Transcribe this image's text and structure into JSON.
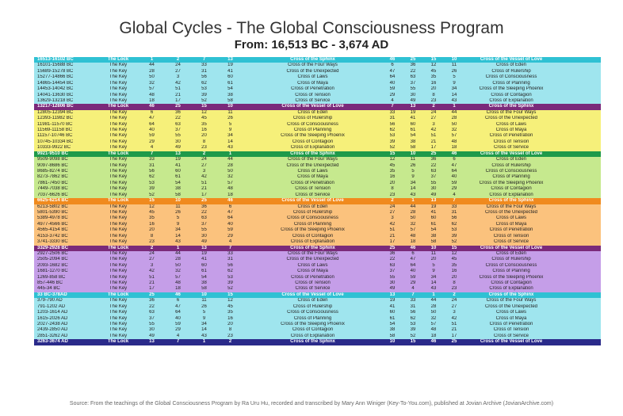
{
  "title": "Global Cycles - The Global Consciousness Program",
  "subtitle": "From: 16,513 BC - 3,674 AD",
  "source": "Source: From the teachings of the Global Consciousness Program by Ra Uru Hu, recorded and transcribed by Mary Ann Winiger (Key-To-You.com), published at Jovian Archive (JovianArchive.com)",
  "colors": {
    "hdr_teal": "#2fc1d3",
    "row_cyan": "#9fe5ee",
    "hdr_violet": "#7a2a7a",
    "row_yellow": "#f6f07a",
    "hdr_green": "#1f9a4a",
    "row_green": "#c6e98e",
    "hdr_orange": "#f08a1e",
    "row_orange": "#fbc27d",
    "hdr_purple": "#7a2a7a",
    "row_purple": "#c59ee8",
    "hdr_navy": "#2a2a8a"
  },
  "blocks": [
    {
      "header": [
        "16513-16102 BC",
        "The Lock",
        "1",
        "2",
        "7",
        "13",
        "Cross of the Sphinx",
        "46",
        "25",
        "15",
        "10",
        "Cross of the Vessel of Love"
      ],
      "hcolor": "hdr_teal",
      "rcolor": "row_cyan",
      "rows": [
        [
          "16101-15688 BC",
          "The Key",
          "44",
          "24",
          "33",
          "19",
          "Cross of the Four Ways",
          "6",
          "36",
          "12",
          "11",
          "Cross of Eden"
        ],
        [
          "15689-15278 BC",
          "The Key",
          "28",
          "27",
          "31",
          "41",
          "Cross of the Unexpected",
          "47",
          "22",
          "45",
          "26",
          "Cross of Rulership"
        ],
        [
          "15277-14866 BC",
          "The Key",
          "50",
          "3",
          "56",
          "60",
          "Cross of Laws",
          "64",
          "63",
          "35",
          "5",
          "Cross of Consciousness"
        ],
        [
          "14865-14454 BC",
          "The Key",
          "32",
          "42",
          "62",
          "61",
          "Cross of Maya",
          "40",
          "37",
          "16",
          "9",
          "Cross of Planning"
        ],
        [
          "14453-14042 BC",
          "The Key",
          "57",
          "51",
          "53",
          "54",
          "Cross of Penetration",
          "59",
          "55",
          "20",
          "34",
          "Cross of the Sleeping Phoenix"
        ],
        [
          "14041-13630 BC",
          "The Key",
          "48",
          "21",
          "39",
          "38",
          "Cross of Tension",
          "29",
          "30",
          "8",
          "14",
          "Cross of Contagion"
        ],
        [
          "13629-13218 BC",
          "The Key",
          "18",
          "17",
          "52",
          "58",
          "Cross of Service",
          "4",
          "49",
          "23",
          "43",
          "Cross of Explanation"
        ]
      ]
    },
    {
      "header": [
        "13217-12806 BC",
        "The Lock",
        "46",
        "25",
        "15",
        "10",
        "Cross of the Vessel of Love",
        "7",
        "13",
        "2",
        "1",
        "Cross of the Sphinx"
      ],
      "hcolor": "hdr_violet",
      "rcolor": "row_yellow",
      "rows": [
        [
          "12805-12394 BC",
          "The Key",
          "6",
          "36",
          "12",
          "11",
          "Cross of Eden",
          "33",
          "19",
          "24",
          "44",
          "Cross of the Four Ways"
        ],
        [
          "12393-11982 BC",
          "The Key",
          "47",
          "22",
          "45",
          "26",
          "Cross of Rulership",
          "31",
          "41",
          "27",
          "28",
          "Cross of the Unexpected"
        ],
        [
          "11981-11570 BC",
          "The Key",
          "64",
          "63",
          "35",
          "5",
          "Cross of Consciousness",
          "56",
          "60",
          "3",
          "50",
          "Cross of Laws"
        ],
        [
          "11569-11158 BC",
          "The Key",
          "40",
          "37",
          "16",
          "9",
          "Cross of Planning",
          "62",
          "61",
          "42",
          "32",
          "Cross of Maya"
        ],
        [
          "11157-10746 BC",
          "The Key",
          "59",
          "55",
          "20",
          "34",
          "Cross of the Sleeping Phoenix",
          "53",
          "54",
          "51",
          "57",
          "Cross of Penetration"
        ],
        [
          "10745-10334 BC",
          "The Key",
          "29",
          "30",
          "8",
          "14",
          "Cross of Contagion",
          "39",
          "38",
          "21",
          "48",
          "Cross of Tension"
        ],
        [
          "10333-9922 BC",
          "The Key",
          "4",
          "49",
          "23",
          "43",
          "Cross of Explanation",
          "52",
          "58",
          "17",
          "18",
          "Cross of Service"
        ]
      ]
    },
    {
      "header": [
        "9921-9510 BC",
        "The Lock",
        "7",
        "13",
        "2",
        "1",
        "Cross of the Sphinx",
        "15",
        "10",
        "25",
        "46",
        "Cross of the Vessel of Love"
      ],
      "hcolor": "hdr_green",
      "rcolor": "row_green",
      "rows": [
        [
          "9509-9098 BC",
          "The Key",
          "33",
          "19",
          "24",
          "44",
          "Cross of the Four Ways",
          "12",
          "11",
          "36",
          "6",
          "Cross of Eden"
        ],
        [
          "9097-8686 BC",
          "The Key",
          "31",
          "41",
          "27",
          "28",
          "Cross of the Unexpected",
          "45",
          "26",
          "22",
          "47",
          "Cross of Rulership"
        ],
        [
          "8685-8274 BC",
          "The Key",
          "56",
          "60",
          "3",
          "50",
          "Cross of Laws",
          "35",
          "5",
          "63",
          "64",
          "Cross of Consciousness"
        ],
        [
          "8273-7862 BC",
          "The Key",
          "62",
          "61",
          "42",
          "32",
          "Cross of Maya",
          "16",
          "9",
          "37",
          "40",
          "Cross of Planning"
        ],
        [
          "7861-7450 BC",
          "The Key",
          "53",
          "54",
          "51",
          "57",
          "Cross of Penetration",
          "20",
          "34",
          "55",
          "59",
          "Cross of the Sleeping Phoenix"
        ],
        [
          "7449-7038 BC",
          "The Key",
          "39",
          "38",
          "21",
          "48",
          "Cross of Tension",
          "8",
          "14",
          "30",
          "29",
          "Cross of Contagion"
        ],
        [
          "7037-6626 BC",
          "The Key",
          "52",
          "58",
          "17",
          "18",
          "Cross of Service",
          "23",
          "43",
          "49",
          "4",
          "Cross of Explanation"
        ]
      ]
    },
    {
      "header": [
        "6625-6214 BC",
        "The Lock",
        "15",
        "10",
        "25",
        "46",
        "Cross of the Vessel of Love",
        "2",
        "1",
        "13",
        "7",
        "Cross of the Sphinx"
      ],
      "hcolor": "hdr_orange",
      "rcolor": "row_orange",
      "rows": [
        [
          "6213-5802 BC",
          "The Key",
          "12",
          "11",
          "36",
          "6",
          "Cross of Eden",
          "24",
          "44",
          "19",
          "33",
          "Cross of the Four Ways"
        ],
        [
          "5801-5390 BC",
          "The Key",
          "45",
          "26",
          "22",
          "47",
          "Cross of Rulership",
          "27",
          "28",
          "41",
          "31",
          "Cross of the Unexpected"
        ],
        [
          "5389-4978 BC",
          "The Key",
          "35",
          "5",
          "63",
          "64",
          "Cross of Consciousness",
          "3",
          "50",
          "60",
          "56",
          "Cross of Laws"
        ],
        [
          "4977-4566 BC",
          "The Key",
          "16",
          "9",
          "37",
          "40",
          "Cross of Planning",
          "42",
          "32",
          "61",
          "62",
          "Cross of Maya"
        ],
        [
          "4565-4154 BC",
          "The Key",
          "20",
          "34",
          "55",
          "59",
          "Cross of the Sleeping Phoenix",
          "51",
          "57",
          "54",
          "53",
          "Cross of Penetration"
        ],
        [
          "4153-3742 BC",
          "The Key",
          "8",
          "14",
          "30",
          "29",
          "Cross of Contagion",
          "21",
          "48",
          "38",
          "39",
          "Cross of Tension"
        ],
        [
          "3741-3330 BC",
          "The Key",
          "23",
          "43",
          "49",
          "4",
          "Cross of Explanation",
          "17",
          "18",
          "58",
          "52",
          "Cross of Service"
        ]
      ]
    },
    {
      "header": [
        "3329-2928 BC",
        "The Lock",
        "2",
        "1",
        "13",
        "7",
        "Cross of the Sphinx",
        "25",
        "46",
        "10",
        "15",
        "Cross of the Vessel of Love"
      ],
      "hcolor": "hdr_purple",
      "rcolor": "row_purple",
      "rows": [
        [
          "2927-2506 BC",
          "The Key",
          "24",
          "44",
          "19",
          "33",
          "Cross of the Four Ways",
          "36",
          "6",
          "11",
          "12",
          "Cross of Eden"
        ],
        [
          "2505-2094 BC",
          "The Key",
          "27",
          "28",
          "41",
          "31",
          "Cross of the Unexpected",
          "22",
          "47",
          "20",
          "45",
          "Cross of Rulership"
        ],
        [
          "2093-1682 BC",
          "The Key",
          "3",
          "50",
          "60",
          "56",
          "Cross of Laws",
          "63",
          "64",
          "5",
          "35",
          "Cross of Consciousness"
        ],
        [
          "1681-1270 BC",
          "The Key",
          "42",
          "32",
          "61",
          "62",
          "Cross of Maya",
          "37",
          "40",
          "9",
          "16",
          "Cross of Planning"
        ],
        [
          "1269-858 BC",
          "The Key",
          "51",
          "57",
          "54",
          "53",
          "Cross of Penetration",
          "55",
          "59",
          "34",
          "20",
          "Cross of the Sleeping Phoenix"
        ],
        [
          "857-446 BC",
          "The Key",
          "21",
          "48",
          "38",
          "39",
          "Cross of Tension",
          "30",
          "29",
          "14",
          "8",
          "Cross of Contagion"
        ],
        [
          "445-34 BC",
          "The Key",
          "17",
          "18",
          "58",
          "52",
          "Cross of Service",
          "49",
          "4",
          "43",
          "23",
          "Cross of Explanation"
        ]
      ]
    },
    {
      "header": [
        "33 BC-378AD",
        "The Lock",
        "25",
        "46",
        "10",
        "15",
        "Cross of the Vessel of Love",
        "13",
        "7",
        "1",
        "2",
        "Cross of the Sphinx"
      ],
      "hcolor": "hdr_teal",
      "rcolor": "row_cyan",
      "rows": [
        [
          "379-790 AD",
          "The Key",
          "36",
          "6",
          "11",
          "12",
          "Cross of Eden",
          "19",
          "33",
          "44",
          "24",
          "Cross of the Four Ways"
        ],
        [
          "791-1202 AD",
          "The Key",
          "22",
          "47",
          "26",
          "45",
          "Cross of Rulership",
          "41",
          "31",
          "28",
          "27",
          "Cross of the Unexpected"
        ],
        [
          "1203-1614 AD",
          "The Key",
          "63",
          "64",
          "5",
          "35",
          "Cross of Consciousness",
          "60",
          "56",
          "50",
          "3",
          "Cross of Laws"
        ],
        [
          "1615-2026 AD",
          "The Key",
          "37",
          "40",
          "9",
          "16",
          "Cross of Planning",
          "61",
          "62",
          "32",
          "42",
          "Cross of Maya"
        ],
        [
          "2027-2438 AD",
          "The Key",
          "55",
          "59",
          "34",
          "20",
          "Cross of the Sleeping Phoenix",
          "54",
          "53",
          "57",
          "51",
          "Cross of Penetration"
        ],
        [
          "2439-2850 AD",
          "The Key",
          "30",
          "29",
          "14",
          "8",
          "Cross of Contagion",
          "38",
          "39",
          "48",
          "21",
          "Cross of Tension"
        ],
        [
          "2851-3262 AD",
          "The Key",
          "49",
          "4",
          "43",
          "23",
          "Cross of Explanation",
          "58",
          "52",
          "18",
          "17",
          "Cross of Service"
        ]
      ]
    },
    {
      "header": [
        "3263-3674 AD",
        "The Lock",
        "13",
        "7",
        "1",
        "2",
        "Cross of the Sphinx",
        "10",
        "15",
        "46",
        "25",
        "Cross of the Vessel of Love"
      ],
      "hcolor": "hdr_navy",
      "rcolor": "row_cyan",
      "rows": []
    }
  ]
}
